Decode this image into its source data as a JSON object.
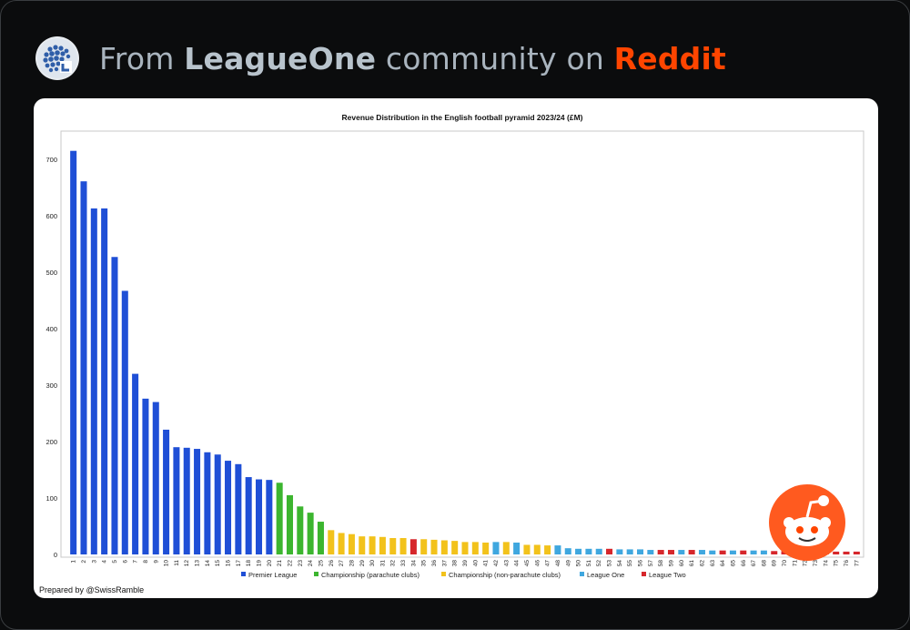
{
  "header": {
    "from": "From",
    "community": "LeagueOne",
    "middle": "community on",
    "platform": "Reddit"
  },
  "footer": {
    "prepared_by": "Prepared by @SwissRamble"
  },
  "colors": {
    "premier_league": "#1f4fd6",
    "championship_parachute": "#3cb52f",
    "championship_non_parachute": "#f2c21b",
    "league_one": "#3fa7df",
    "league_two": "#d6262b",
    "reddit": "#ff4500"
  },
  "chart_data": {
    "type": "bar",
    "title": "Revenue Distribution in the English football pyramid 2023/24 (£M)",
    "xlabel": "",
    "ylabel": "",
    "ylim": [
      0,
      750
    ],
    "yticks": [
      0,
      100,
      200,
      300,
      400,
      500,
      600,
      700
    ],
    "categories": [
      "1",
      "2",
      "3",
      "4",
      "5",
      "6",
      "7",
      "8",
      "9",
      "10",
      "11",
      "12",
      "13",
      "14",
      "15",
      "16",
      "17",
      "18",
      "19",
      "20",
      "21",
      "22",
      "23",
      "24",
      "25",
      "26",
      "27",
      "28",
      "29",
      "30",
      "31",
      "32",
      "33",
      "34",
      "35",
      "36",
      "37",
      "38",
      "39",
      "40",
      "41",
      "42",
      "43",
      "44",
      "45",
      "46",
      "47",
      "48",
      "49",
      "50",
      "51",
      "52",
      "53",
      "54",
      "55",
      "56",
      "57",
      "58",
      "59",
      "60",
      "61",
      "62",
      "63",
      "64",
      "65",
      "66",
      "67",
      "68",
      "69",
      "70",
      "71",
      "72",
      "73",
      "74",
      "75",
      "76",
      "77"
    ],
    "values": [
      715,
      661,
      613,
      613,
      527,
      467,
      320,
      276,
      270,
      221,
      190,
      189,
      187,
      181,
      177,
      166,
      160,
      137,
      133,
      132,
      127,
      105,
      85,
      74,
      58,
      43,
      38,
      36,
      32,
      32,
      31,
      29,
      29,
      27,
      27,
      26,
      25,
      24,
      22,
      22,
      21,
      22,
      22,
      21,
      17,
      17,
      16,
      16,
      11,
      10,
      10,
      10,
      10,
      9,
      9,
      9,
      8,
      8,
      8,
      8,
      8,
      8,
      7,
      7,
      7,
      7,
      7,
      7,
      6,
      6,
      6,
      6,
      5,
      5,
      5,
      5,
      5
    ],
    "league": [
      "PL",
      "PL",
      "PL",
      "PL",
      "PL",
      "PL",
      "PL",
      "PL",
      "PL",
      "PL",
      "PL",
      "PL",
      "PL",
      "PL",
      "PL",
      "PL",
      "PL",
      "PL",
      "PL",
      "PL",
      "CP",
      "CP",
      "CP",
      "CP",
      "CP",
      "CN",
      "CN",
      "CN",
      "CN",
      "CN",
      "CN",
      "CN",
      "CN",
      "L2",
      "CN",
      "CN",
      "CN",
      "CN",
      "CN",
      "CN",
      "CN",
      "L1",
      "CN",
      "L1",
      "CN",
      "CN",
      "CN",
      "L1",
      "L1",
      "L1",
      "L1",
      "L1",
      "L2",
      "L1",
      "L1",
      "L1",
      "L1",
      "L2",
      "L2",
      "L1",
      "L2",
      "L1",
      "L1",
      "L2",
      "L1",
      "L2",
      "L1",
      "L1",
      "L2",
      "L2",
      "L2",
      "L2",
      "L2",
      "L2",
      "L2",
      "L2",
      "L2"
    ],
    "legend": [
      {
        "key": "PL",
        "name": "Premier League"
      },
      {
        "key": "CP",
        "name": "Championship (parachute clubs)"
      },
      {
        "key": "CN",
        "name": "Championship (non-parachute clubs)"
      },
      {
        "key": "L1",
        "name": "League One"
      },
      {
        "key": "L2",
        "name": "League Two"
      }
    ],
    "legend_position": "bottom",
    "grid": false
  }
}
